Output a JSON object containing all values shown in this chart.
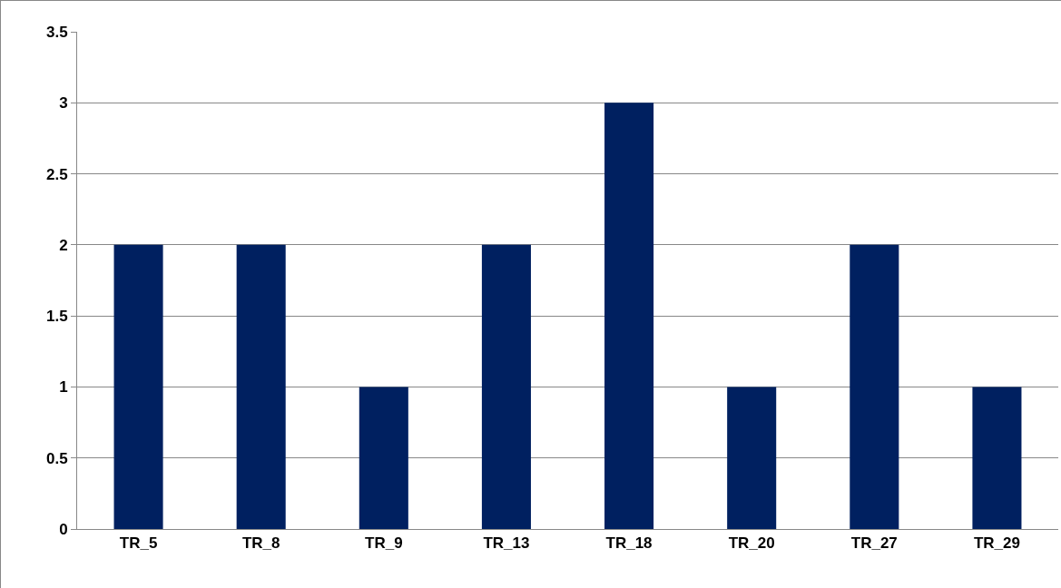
{
  "chart_data": {
    "type": "bar",
    "categories": [
      "TR_5",
      "TR_8",
      "TR_9",
      "TR_13",
      "TR_18",
      "TR_20",
      "TR_27",
      "TR_29"
    ],
    "values": [
      2,
      2,
      1,
      2,
      3,
      1,
      2,
      1
    ],
    "color": "#002060",
    "ylim": [
      0,
      3.5
    ],
    "yticks": [
      0,
      0.5,
      1,
      1.5,
      2,
      2.5,
      3,
      3.5
    ],
    "grid": "y",
    "legend": false
  }
}
